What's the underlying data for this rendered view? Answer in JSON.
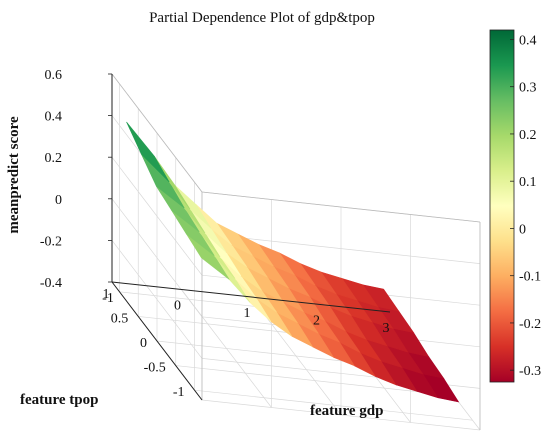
{
  "chart_data": {
    "type": "surface3d",
    "title": "Partial Dependence Plot of gdp&tpop",
    "xlabel": "feature gdp",
    "ylabel": "feature tpop",
    "zlabel": "meanpredict score",
    "x_ticks": [
      "-1",
      "0",
      "1",
      "2",
      "3"
    ],
    "y_ticks": [
      "-1",
      "-0.5",
      "0",
      "0.5",
      "1"
    ],
    "z_ticks": [
      "-0.4",
      "-0.2",
      "0",
      "0.2",
      "0.4",
      "0.6"
    ],
    "xlim": [
      -1,
      3
    ],
    "ylim": [
      -1.2,
      1.2
    ],
    "zlim": [
      -0.4,
      0.6
    ],
    "grid": true,
    "colormap": "RdYlGn",
    "colorbar": {
      "range": [
        -0.3,
        0.4
      ],
      "ticks": [
        "-0.3",
        "-0.2",
        "-0.1",
        "0",
        "0.1",
        "0.2",
        "0.3",
        "0.4"
      ]
    },
    "surface": {
      "gdp": [
        -0.9,
        -0.5,
        -0.2,
        0.1,
        0.4,
        0.7,
        1.0,
        1.3,
        1.6,
        1.9,
        2.2,
        2.5,
        2.8
      ],
      "tpop": [
        -1.0,
        -0.6,
        -0.2,
        0.2,
        0.6,
        1.0
      ],
      "score": [
        [
          0.24,
          0.15,
          0.05,
          -0.03,
          -0.09,
          -0.13,
          -0.17,
          -0.2,
          -0.24,
          -0.27,
          -0.29,
          -0.31,
          -0.32
        ],
        [
          0.26,
          0.17,
          0.07,
          -0.01,
          -0.07,
          -0.11,
          -0.15,
          -0.18,
          -0.22,
          -0.25,
          -0.27,
          -0.29,
          -0.3
        ],
        [
          0.28,
          0.19,
          0.08,
          0.0,
          -0.06,
          -0.1,
          -0.14,
          -0.17,
          -0.21,
          -0.24,
          -0.26,
          -0.28,
          -0.29
        ],
        [
          0.3,
          0.21,
          0.1,
          0.02,
          -0.04,
          -0.08,
          -0.12,
          -0.15,
          -0.19,
          -0.22,
          -0.24,
          -0.26,
          -0.27
        ],
        [
          0.36,
          0.24,
          0.12,
          0.04,
          -0.03,
          -0.07,
          -0.11,
          -0.14,
          -0.18,
          -0.21,
          -0.23,
          -0.25,
          -0.26
        ],
        [
          0.42,
          0.27,
          0.14,
          0.06,
          -0.02,
          -0.06,
          -0.1,
          -0.13,
          -0.17,
          -0.2,
          -0.22,
          -0.24,
          -0.25
        ]
      ]
    },
    "colors": {
      "low": "#a50026",
      "mid": "#ffffbf",
      "high": "#006837",
      "grid": "#d9d9d9",
      "axis": "#222222"
    }
  }
}
